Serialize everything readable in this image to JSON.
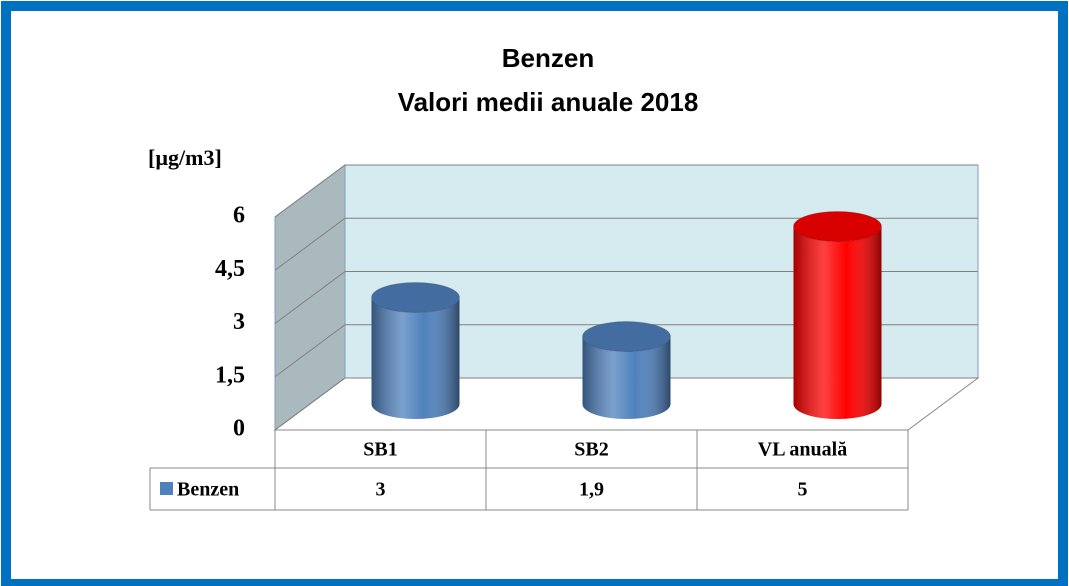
{
  "chart_data": {
    "type": "bar3d-cylinder",
    "title": "Benzen",
    "subtitle": "Valori medii anuale 2018",
    "y_label": "[µg/m3]",
    "categories": [
      "SB1",
      "SB2",
      "VL anuală"
    ],
    "series": [
      {
        "name": "Benzen",
        "colors": [
          "#4f81bd",
          "#4f81bd",
          "#ff0000"
        ],
        "values": [
          3,
          1.9,
          5
        ],
        "value_labels": [
          "3",
          "1,9",
          "5"
        ]
      }
    ],
    "ylim": [
      0,
      6
    ],
    "yticks": [
      0,
      {
        "value": 1.5,
        "label": "1,5"
      },
      3,
      {
        "value": 4.5,
        "label": "4,5"
      },
      6
    ],
    "grid": true,
    "data_table": true
  }
}
